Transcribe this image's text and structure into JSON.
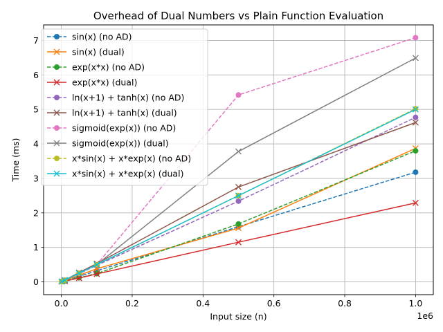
{
  "chart_data": {
    "type": "line",
    "title": "Overhead of Dual Numbers vs Plain Function Evaluation",
    "xlabel": "Input size (n)",
    "ylabel": "Time (ms)",
    "x_scale_label": "1e6",
    "xlim": [
      -50000,
      1050000
    ],
    "ylim": [
      -0.37,
      7.45
    ],
    "x_ticks": [
      0,
      200000,
      400000,
      600000,
      800000,
      1000000
    ],
    "x_tick_labels": [
      "0.0",
      "0.2",
      "0.4",
      "0.6",
      "0.8",
      "1.0"
    ],
    "y_ticks": [
      0,
      1,
      2,
      3,
      4,
      5,
      6,
      7
    ],
    "y_tick_labels": [
      "0",
      "1",
      "2",
      "3",
      "4",
      "5",
      "6",
      "7"
    ],
    "grid": true,
    "legend_position": "top-left",
    "x": [
      1000,
      10000,
      50000,
      100000,
      500000,
      1000000
    ],
    "series": [
      {
        "name": "sin(x) (no AD)",
        "color": "#1f77b4",
        "dashed": true,
        "marker": "circle",
        "values": [
          0.01,
          0.03,
          0.16,
          0.32,
          1.6,
          3.18
        ]
      },
      {
        "name": "sin(x) (dual)",
        "color": "#ff7f0e",
        "dashed": false,
        "marker": "x",
        "values": [
          0.01,
          0.04,
          0.19,
          0.38,
          1.56,
          3.87
        ]
      },
      {
        "name": "exp(x*x) (no AD)",
        "color": "#2ca02c",
        "dashed": true,
        "marker": "circle",
        "values": [
          0.01,
          0.03,
          0.12,
          0.24,
          1.68,
          3.8
        ]
      },
      {
        "name": "exp(x*x) (dual)",
        "color": "#d62728",
        "dashed": false,
        "marker": "x",
        "values": [
          0.01,
          0.02,
          0.11,
          0.23,
          1.15,
          2.29
        ]
      },
      {
        "name": "ln(x+1) + tanh(x) (no AD)",
        "color": "#9467bd",
        "dashed": true,
        "marker": "circle",
        "values": [
          0.01,
          0.05,
          0.24,
          0.48,
          2.34,
          4.77
        ]
      },
      {
        "name": "ln(x+1) + tanh(x) (dual)",
        "color": "#8c564b",
        "dashed": false,
        "marker": "x",
        "values": [
          0.01,
          0.05,
          0.27,
          0.53,
          2.75,
          4.62
        ]
      },
      {
        "name": "sigmoid(exp(x)) (no AD)",
        "color": "#e377c2",
        "dashed": true,
        "marker": "circle",
        "values": [
          0.01,
          0.05,
          0.25,
          0.5,
          5.42,
          7.08
        ]
      },
      {
        "name": "sigmoid(exp(x)) (dual)",
        "color": "#7f7f7f",
        "dashed": false,
        "marker": "x",
        "values": [
          0.01,
          0.05,
          0.25,
          0.5,
          3.78,
          6.49
        ]
      },
      {
        "name": "x*sin(x) + x*exp(x) (no AD)",
        "color": "#bcbd22",
        "dashed": true,
        "marker": "circle",
        "values": [
          0.01,
          0.05,
          0.25,
          0.5,
          2.5,
          5.02
        ]
      },
      {
        "name": "x*sin(x) + x*exp(x) (dual)",
        "color": "#17becf",
        "dashed": false,
        "marker": "x",
        "values": [
          0.01,
          0.05,
          0.25,
          0.5,
          2.5,
          5.0
        ]
      }
    ]
  }
}
